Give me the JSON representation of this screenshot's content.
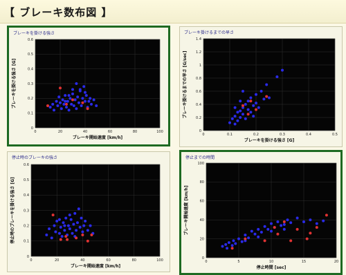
{
  "header": {
    "title": "【 ブレーキ数布図 】"
  },
  "colors": {
    "plot_bg": "#050505",
    "series_blue": "#2a2ae8",
    "series_red": "#e03232",
    "frame_selected": "#1e6a22"
  },
  "chart_data": [
    {
      "id": "p1",
      "type": "scatter",
      "selected": true,
      "title": "ブレーキを掛ける強さ",
      "xlabel": "ブレーキ開始速度 [km/h]",
      "ylabel": "ブレーキを掛ける強さ [G]",
      "xlim": [
        0,
        100
      ],
      "ylim": [
        0,
        0.6
      ],
      "xticks": [
        0,
        20,
        40,
        60,
        80,
        100
      ],
      "yticks": [
        0,
        0.1,
        0.2,
        0.3,
        0.4,
        0.5,
        0.6
      ],
      "xticklabels": [
        "0",
        "20",
        "40",
        "60",
        "80",
        "100"
      ],
      "yticklabels": [
        "0",
        "0.1",
        "0.2",
        "0.3",
        "0.4",
        "0.5",
        "0.6"
      ],
      "series": [
        {
          "color": "#2a2ae8",
          "points": [
            [
              12,
              0.14
            ],
            [
              14,
              0.16
            ],
            [
              15,
              0.12
            ],
            [
              17,
              0.18
            ],
            [
              18,
              0.15
            ],
            [
              19,
              0.21
            ],
            [
              20,
              0.17
            ],
            [
              21,
              0.13
            ],
            [
              22,
              0.19
            ],
            [
              23,
              0.16
            ],
            [
              24,
              0.22
            ],
            [
              25,
              0.14
            ],
            [
              26,
              0.18
            ],
            [
              27,
              0.12
            ],
            [
              28,
              0.2
            ],
            [
              29,
              0.16
            ],
            [
              30,
              0.23
            ],
            [
              31,
              0.15
            ],
            [
              32,
              0.19
            ],
            [
              33,
              0.13
            ],
            [
              34,
              0.21
            ],
            [
              35,
              0.17
            ],
            [
              36,
              0.25
            ],
            [
              37,
              0.15
            ],
            [
              38,
              0.2
            ],
            [
              39,
              0.28
            ],
            [
              40,
              0.18
            ],
            [
              41,
              0.22
            ],
            [
              42,
              0.14
            ],
            [
              43,
              0.18
            ],
            [
              44,
              0.2
            ],
            [
              45,
              0.16
            ],
            [
              47,
              0.19
            ],
            [
              49,
              0.15
            ],
            [
              33,
              0.3
            ],
            [
              36,
              0.26
            ],
            [
              30,
              0.26
            ],
            [
              40,
              0.24
            ],
            [
              27,
              0.22
            ],
            [
              24,
              0.18
            ]
          ]
        },
        {
          "color": "#e03232",
          "points": [
            [
              10,
              0.15
            ],
            [
              20,
              0.27
            ],
            [
              25,
              0.16
            ],
            [
              30,
              0.19
            ],
            [
              38,
              0.17
            ],
            [
              42,
              0.13
            ]
          ]
        }
      ]
    },
    {
      "id": "p2",
      "type": "scatter",
      "selected": false,
      "title": "ブレーキ掛けるまでの早さ",
      "xlabel": "ブレーキを掛ける強さ [G]",
      "ylabel": "ブレーキ掛けるまでの早さ [G/sec]",
      "xlim": [
        0,
        0.5
      ],
      "ylim": [
        0,
        1.4
      ],
      "xticks": [
        0,
        0.1,
        0.2,
        0.3,
        0.4,
        0.5
      ],
      "yticks": [
        0,
        0.2,
        0.4,
        0.6,
        0.8,
        1.0,
        1.2,
        1.4
      ],
      "xticklabels": [
        "0",
        "0.1",
        "0.2",
        "0.3",
        "0.4",
        "0.5"
      ],
      "yticklabels": [
        "0",
        "0.2",
        "0.4",
        "0.6",
        "0.8",
        "1",
        "1.2",
        "1.4"
      ],
      "series": [
        {
          "color": "#2a2ae8",
          "points": [
            [
              0.1,
              0.12
            ],
            [
              0.11,
              0.18
            ],
            [
              0.12,
              0.22
            ],
            [
              0.12,
              0.1
            ],
            [
              0.13,
              0.28
            ],
            [
              0.13,
              0.15
            ],
            [
              0.14,
              0.3
            ],
            [
              0.14,
              0.2
            ],
            [
              0.15,
              0.35
            ],
            [
              0.15,
              0.25
            ],
            [
              0.16,
              0.4
            ],
            [
              0.16,
              0.18
            ],
            [
              0.17,
              0.32
            ],
            [
              0.17,
              0.45
            ],
            [
              0.18,
              0.28
            ],
            [
              0.18,
              0.5
            ],
            [
              0.19,
              0.38
            ],
            [
              0.19,
              0.22
            ],
            [
              0.2,
              0.42
            ],
            [
              0.2,
              0.55
            ],
            [
              0.21,
              0.35
            ],
            [
              0.22,
              0.6
            ],
            [
              0.23,
              0.48
            ],
            [
              0.24,
              0.7
            ],
            [
              0.25,
              0.5
            ],
            [
              0.28,
              0.82
            ],
            [
              0.3,
              0.92
            ],
            [
              0.15,
              0.6
            ],
            [
              0.14,
              0.45
            ],
            [
              0.12,
              0.35
            ]
          ]
        },
        {
          "color": "#e03232",
          "points": [
            [
              0.15,
              0.38
            ],
            [
              0.18,
              0.45
            ],
            [
              0.2,
              0.32
            ],
            [
              0.24,
              0.52
            ],
            [
              0.17,
              0.25
            ]
          ]
        }
      ]
    },
    {
      "id": "p3",
      "type": "scatter",
      "selected": false,
      "title": "停止時のブレーキの強さ",
      "xlabel": "ブレーキ開始速度 [km/h]",
      "ylabel": "停止時のブレーキを掛ける強さ [G]",
      "xlim": [
        0,
        100
      ],
      "ylim": [
        0,
        0.6
      ],
      "xticks": [
        0,
        20,
        40,
        60,
        80,
        100
      ],
      "yticks": [
        0,
        0.1,
        0.2,
        0.3,
        0.4,
        0.5,
        0.6
      ],
      "xticklabels": [
        "0",
        "20",
        "40",
        "60",
        "80",
        "100"
      ],
      "yticklabels": [
        "0",
        "0.1",
        "0.2",
        "0.3",
        "0.4",
        "0.5",
        "0.6"
      ],
      "series": [
        {
          "color": "#2a2ae8",
          "points": [
            [
              12,
              0.14
            ],
            [
              14,
              0.18
            ],
            [
              16,
              0.12
            ],
            [
              18,
              0.2
            ],
            [
              19,
              0.16
            ],
            [
              20,
              0.23
            ],
            [
              22,
              0.15
            ],
            [
              23,
              0.19
            ],
            [
              24,
              0.13
            ],
            [
              25,
              0.22
            ],
            [
              26,
              0.17
            ],
            [
              27,
              0.25
            ],
            [
              28,
              0.14
            ],
            [
              29,
              0.2
            ],
            [
              30,
              0.18
            ],
            [
              31,
              0.24
            ],
            [
              32,
              0.15
            ],
            [
              33,
              0.21
            ],
            [
              34,
              0.28
            ],
            [
              35,
              0.17
            ],
            [
              36,
              0.22
            ],
            [
              37,
              0.31
            ],
            [
              38,
              0.19
            ],
            [
              39,
              0.25
            ],
            [
              40,
              0.16
            ],
            [
              41,
              0.2
            ],
            [
              42,
              0.23
            ],
            [
              44,
              0.17
            ],
            [
              46,
              0.2
            ],
            [
              48,
              0.15
            ],
            [
              30,
              0.27
            ],
            [
              26,
              0.2
            ],
            [
              22,
              0.24
            ],
            [
              34,
              0.13
            ]
          ]
        },
        {
          "color": "#e03232",
          "points": [
            [
              17,
              0.27
            ],
            [
              23,
              0.11
            ],
            [
              28,
              0.11
            ],
            [
              35,
              0.12
            ],
            [
              40,
              0.14
            ],
            [
              44,
              0.1
            ],
            [
              47,
              0.14
            ],
            [
              27,
              0.13
            ]
          ]
        }
      ]
    },
    {
      "id": "p4",
      "type": "scatter",
      "selected": true,
      "title": "停止までの時間",
      "xlabel": "停止時間 [sec]",
      "ylabel": "ブレーキ開始速度 [km/h]",
      "xlim": [
        0,
        20
      ],
      "ylim": [
        0,
        100
      ],
      "xticks": [
        0,
        5,
        10,
        15,
        20
      ],
      "yticks": [
        0,
        20,
        40,
        60,
        80,
        100
      ],
      "xticklabels": [
        "0",
        "5",
        "10",
        "15",
        "20"
      ],
      "yticklabels": [
        "0",
        "20",
        "40",
        "60",
        "80",
        "100"
      ],
      "series": [
        {
          "color": "#2a2ae8",
          "points": [
            [
              2.5,
              12
            ],
            [
              3,
              14
            ],
            [
              3.2,
              10
            ],
            [
              3.5,
              16
            ],
            [
              4,
              13
            ],
            [
              4.2,
              18
            ],
            [
              4.5,
              15
            ],
            [
              5,
              20
            ],
            [
              5.5,
              17
            ],
            [
              6,
              24
            ],
            [
              6.5,
              21
            ],
            [
              7,
              28
            ],
            [
              7.5,
              25
            ],
            [
              8,
              30
            ],
            [
              8.5,
              27
            ],
            [
              9,
              33
            ],
            [
              9.5,
              30
            ],
            [
              10,
              36
            ],
            [
              10.5,
              32
            ],
            [
              11,
              38
            ],
            [
              11.5,
              34
            ],
            [
              12,
              35
            ],
            [
              12.5,
              40
            ],
            [
              13,
              37
            ],
            [
              14,
              42
            ],
            [
              15,
              38
            ],
            [
              16,
              40
            ],
            [
              17,
              36
            ],
            [
              18,
              39
            ],
            [
              6,
              18
            ],
            [
              8,
              22
            ],
            [
              10,
              28
            ],
            [
              12,
              30
            ]
          ]
        },
        {
          "color": "#e03232",
          "points": [
            [
              4,
              10
            ],
            [
              6,
              20
            ],
            [
              9,
              18
            ],
            [
              11,
              25
            ],
            [
              13,
              18
            ],
            [
              14,
              30
            ],
            [
              15.5,
              20
            ],
            [
              17,
              32
            ],
            [
              16,
              26
            ],
            [
              18.5,
              45
            ],
            [
              12,
              38
            ],
            [
              10.5,
              32
            ]
          ]
        }
      ]
    }
  ]
}
